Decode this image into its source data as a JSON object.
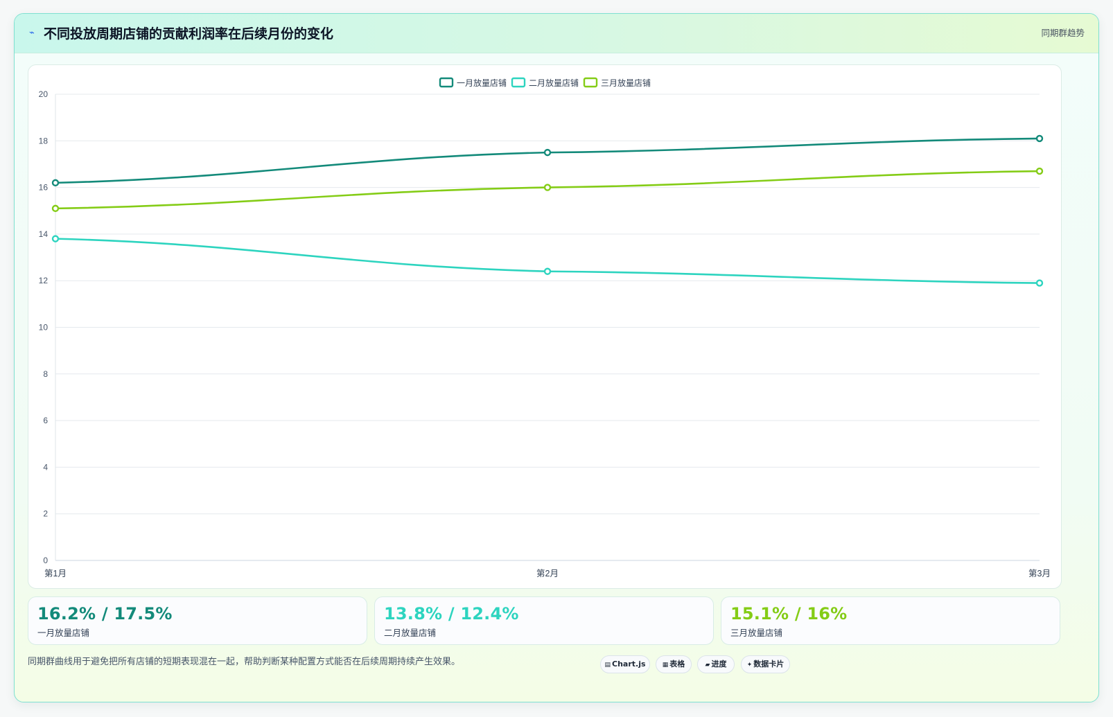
{
  "header": {
    "icon": "lightning-icon",
    "title": "不同投放周期店铺的贡献利润率在后续月份的变化",
    "tag": "同期群趋势"
  },
  "chart_data": {
    "type": "line",
    "categories": [
      "第1月",
      "第2月",
      "第3月"
    ],
    "series": [
      {
        "name": "一月放量店铺",
        "values": [
          16.2,
          17.5,
          18.1
        ],
        "color": "#138a7a"
      },
      {
        "name": "二月放量店铺",
        "values": [
          13.8,
          12.4,
          11.9
        ],
        "color": "#2dd4bf"
      },
      {
        "name": "三月放量店铺",
        "values": [
          15.1,
          16.0,
          16.7
        ],
        "color": "#84cc16"
      }
    ],
    "ylim": [
      0,
      20
    ],
    "yticks": [
      0,
      2,
      4,
      6,
      8,
      10,
      12,
      14,
      16,
      18,
      20
    ],
    "legend_position": "top-center",
    "grid": true
  },
  "stats": [
    {
      "value": "16.2% / 17.5%",
      "label": "一月放量店铺",
      "color": "#138a7a"
    },
    {
      "value": "13.8% / 12.4%",
      "label": "二月放量店铺",
      "color": "#2dd4bf"
    },
    {
      "value": "15.1% / 16%",
      "label": "三月放量店铺",
      "color": "#84cc16"
    }
  ],
  "footnote": "同期群曲线用于避免把所有店铺的短期表现混在一起，帮助判断某种配置方式能否在后续周期持续产生效果。",
  "chips": [
    {
      "icon": "▤",
      "label": "Chart.js"
    },
    {
      "icon": "▦",
      "label": "表格"
    },
    {
      "icon": "▰",
      "label": "进度"
    },
    {
      "icon": "✦",
      "label": "数据卡片"
    }
  ]
}
